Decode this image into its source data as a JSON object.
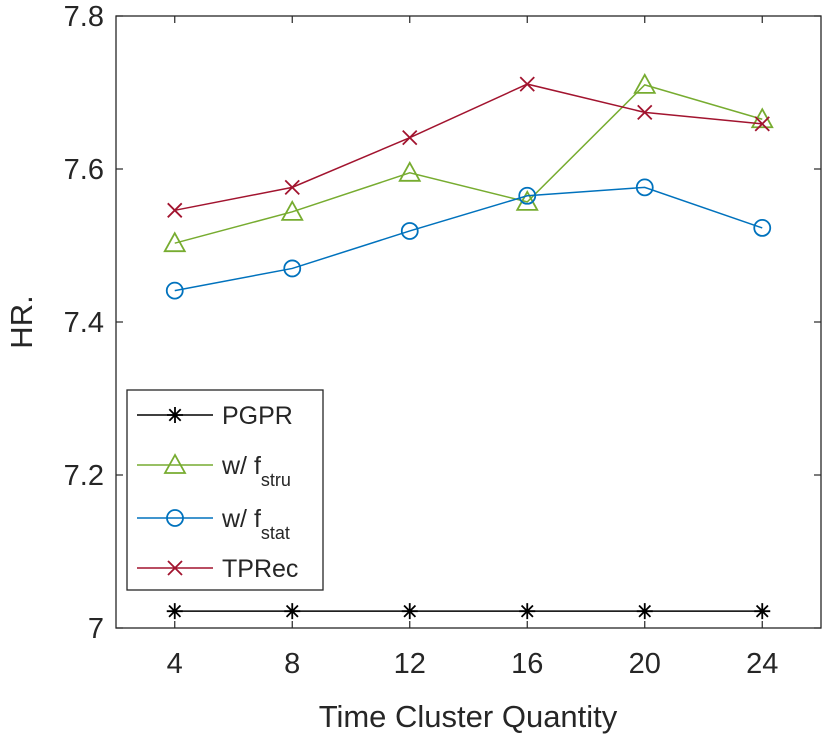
{
  "chart_data": {
    "type": "line",
    "title": "",
    "xlabel": "Time Cluster Quantity",
    "ylabel": "HR.",
    "x": [
      4,
      8,
      12,
      16,
      20,
      24
    ],
    "x_ticks": [
      "4",
      "8",
      "12",
      "16",
      "20",
      "24"
    ],
    "xlim": [
      2,
      26
    ],
    "ylim": [
      7.0,
      7.8
    ],
    "y_ticks": [
      "7",
      "7.2",
      "7.4",
      "7.6",
      "7.8"
    ],
    "grid": false,
    "legend_position": "lower-left",
    "series": [
      {
        "name": "PGPR",
        "base": "PGPR",
        "sub": "",
        "color": "#000000",
        "marker": "asterisk",
        "values": [
          7.022,
          7.022,
          7.022,
          7.022,
          7.022,
          7.022
        ]
      },
      {
        "name": "w/ f_stru",
        "base": "w/ f",
        "sub": "stru",
        "color": "#77AC30",
        "marker": "triangle",
        "values": [
          7.503,
          7.544,
          7.595,
          7.557,
          7.71,
          7.665
        ]
      },
      {
        "name": "w/ f_stat",
        "base": "w/ f",
        "sub": "stat",
        "color": "#0072BD",
        "marker": "circle",
        "values": [
          7.441,
          7.47,
          7.519,
          7.565,
          7.576,
          7.523
        ]
      },
      {
        "name": "TPRec",
        "base": "TPRec",
        "sub": "",
        "color": "#A2142F",
        "marker": "x",
        "values": [
          7.546,
          7.576,
          7.641,
          7.711,
          7.674,
          7.659
        ]
      }
    ]
  }
}
